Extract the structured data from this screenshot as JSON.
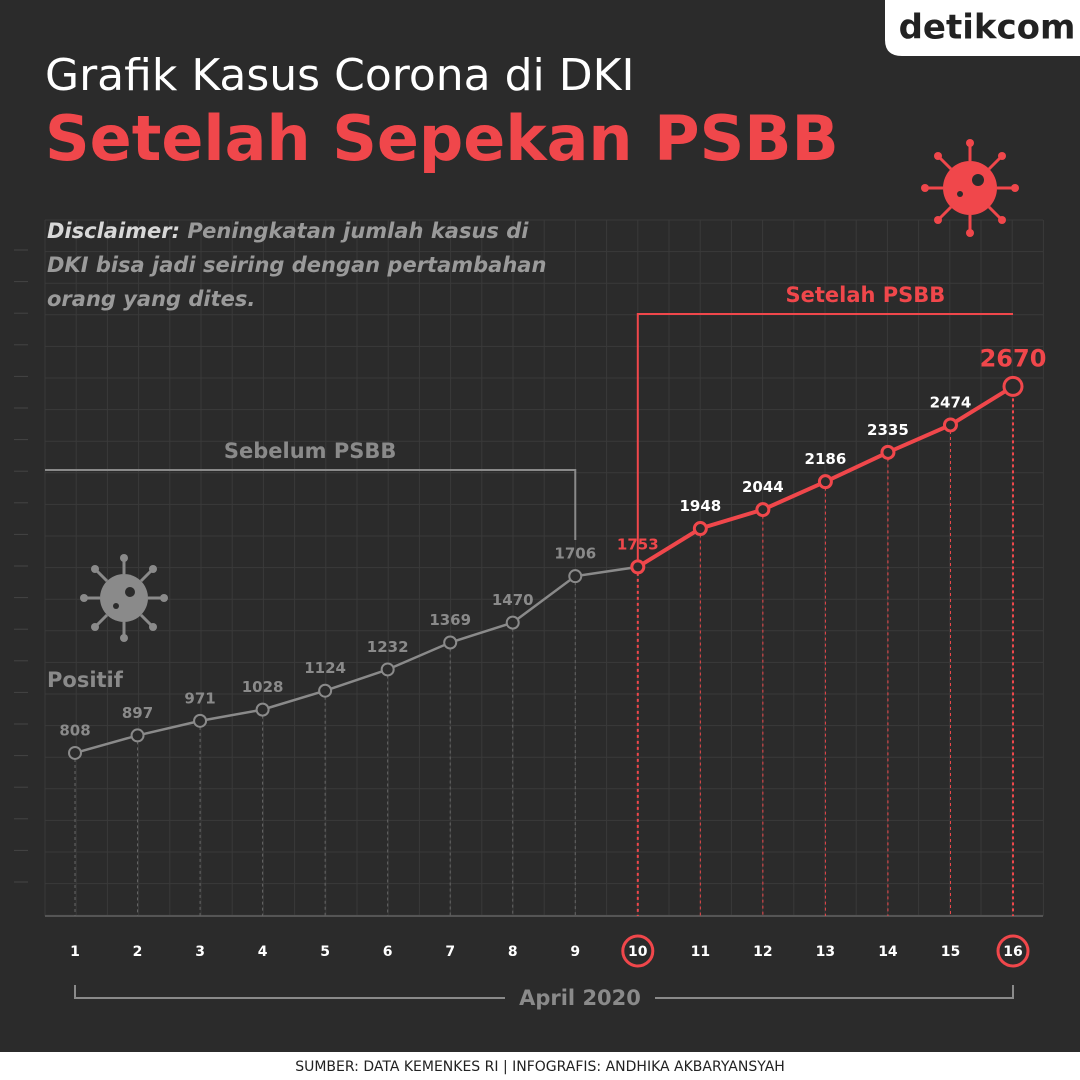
{
  "header": {
    "logo": "detikcom"
  },
  "chart_data": {
    "type": "line",
    "title": "Grafik Kasus Corona di DKI",
    "subtitle": "Setelah Sepekan PSBB",
    "disclaimer": {
      "label": "Disclaimer:",
      "text": "Peningkatan jumlah kasus di DKI bisa jadi seiring dengan pertambahan orang yang dites."
    },
    "ylabel": "Positif",
    "xlabel": "April 2020",
    "categories": [
      "1",
      "2",
      "3",
      "4",
      "5",
      "6",
      "7",
      "8",
      "9",
      "10",
      "11",
      "12",
      "13",
      "14",
      "15",
      "16"
    ],
    "series": [
      {
        "name": "Sebelum PSBB",
        "color": "#8a8a8a",
        "values": [
          808,
          897,
          971,
          1028,
          1124,
          1232,
          1369,
          1470,
          1706,
          1753,
          null,
          null,
          null,
          null,
          null,
          null
        ]
      },
      {
        "name": "Setelah PSBB",
        "color": "#f0474b",
        "values": [
          null,
          null,
          null,
          null,
          null,
          null,
          null,
          null,
          null,
          1753,
          1948,
          2044,
          2186,
          2335,
          2474,
          2670
        ]
      }
    ],
    "ylim": [
      0,
      3500
    ],
    "grid": true,
    "source": "SUMBER: DATA KEMENKES RI | INFOGRAFIS: ANDHIKA AKBARYANSYAH"
  }
}
